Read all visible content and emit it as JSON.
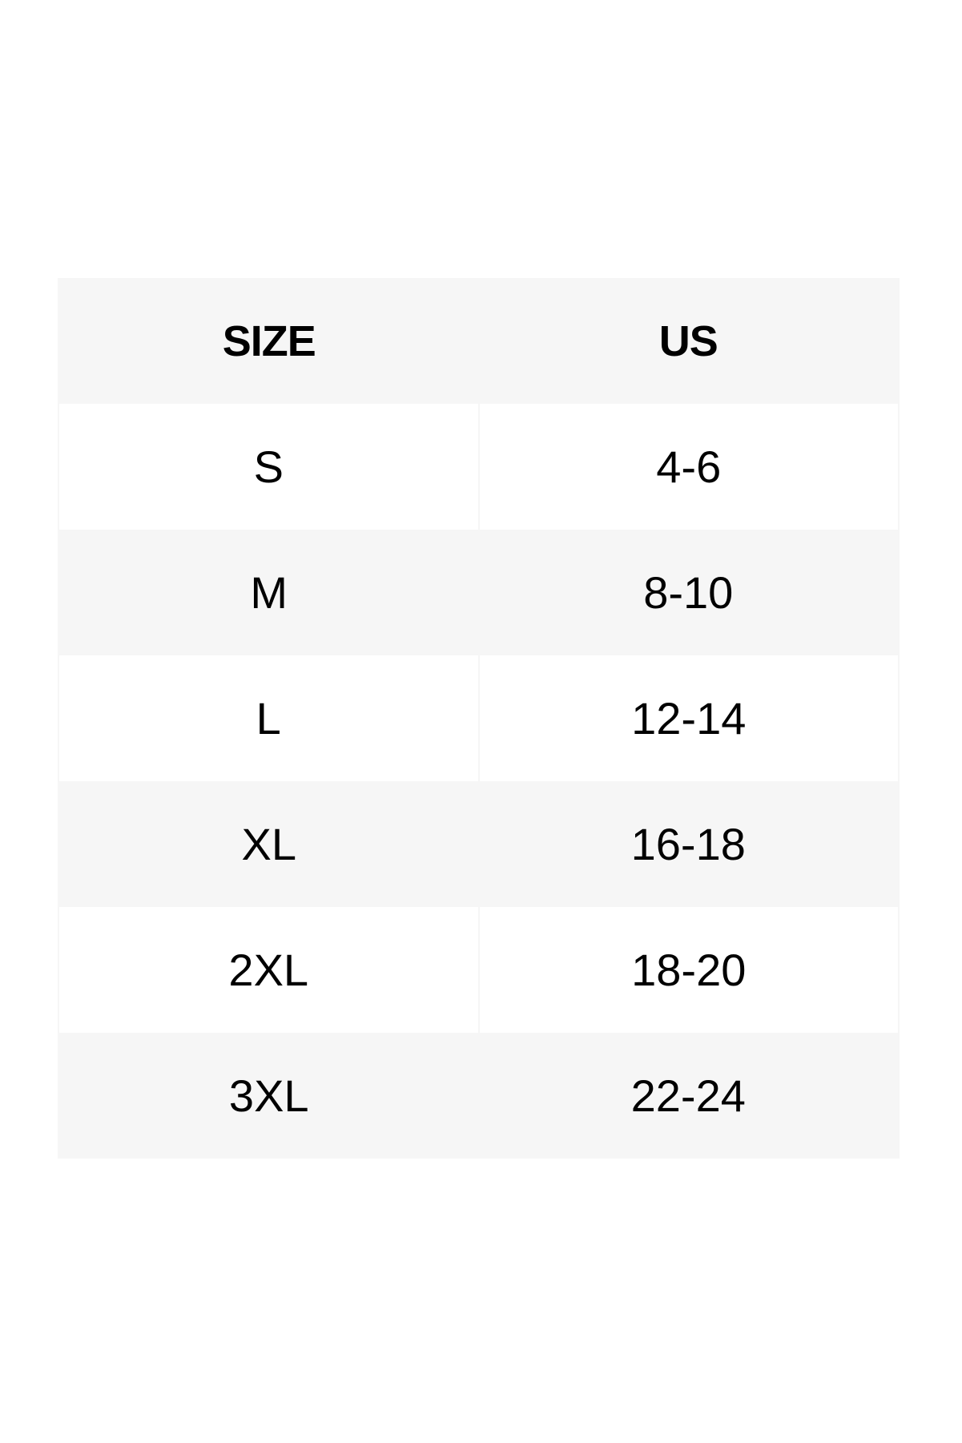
{
  "table": {
    "header": [
      "SIZE",
      "US"
    ],
    "rows": [
      [
        "S",
        "4-6"
      ],
      [
        "M",
        "8-10"
      ],
      [
        "L",
        "12-14"
      ],
      [
        "XL",
        "16-18"
      ],
      [
        "2XL",
        "18-20"
      ],
      [
        "3XL",
        "22-24"
      ]
    ]
  }
}
